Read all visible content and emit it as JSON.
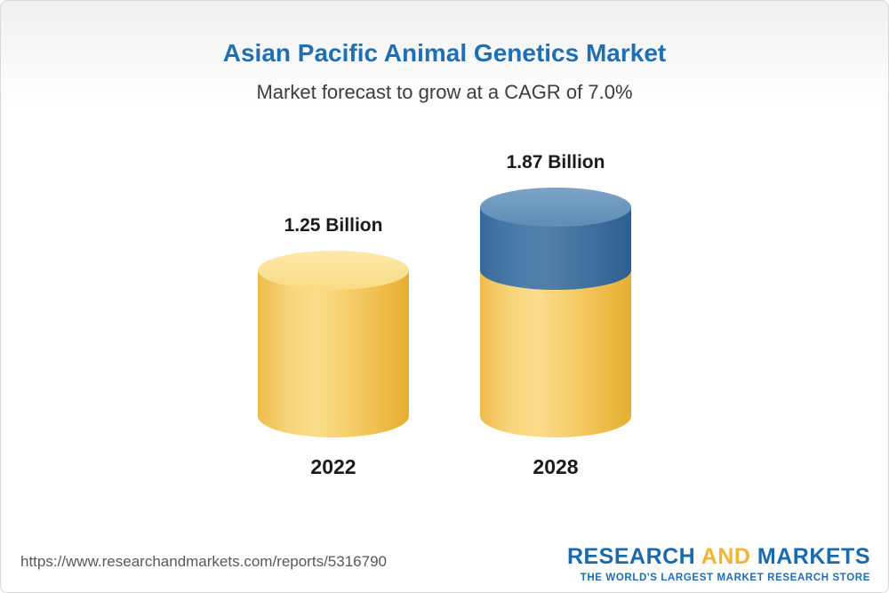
{
  "chart_data": {
    "type": "bar",
    "title": "Asian Pacific Animal Genetics Market",
    "subtitle": "Market forecast to grow at a CAGR of 7.0%",
    "categories": [
      "2022",
      "2028"
    ],
    "values": [
      1.25,
      1.87
    ],
    "value_labels": [
      "1.25 Billion",
      "1.87 Billion"
    ],
    "unit": "Billion",
    "cagr": "7.0%",
    "legend_position": "none",
    "grid": false,
    "colors": {
      "bar_2022": "#f5cd68",
      "bar_2028_base": "#f5cd68",
      "bar_2028_growth": "#41719f"
    }
  },
  "footer": {
    "url": "https://www.researchandmarkets.com/reports/5316790",
    "logo": {
      "research": "RESEARCH",
      "and": "AND",
      "markets": "MARKETS",
      "tagline": "THE WORLD'S LARGEST MARKET RESEARCH STORE"
    }
  },
  "colors": {
    "title_blue": "#1e6fb4",
    "logo_blue": "#1a6aad",
    "logo_gold": "#f2b531"
  }
}
